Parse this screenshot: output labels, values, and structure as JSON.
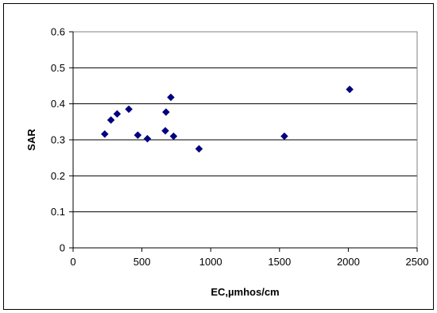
{
  "chart_data": {
    "type": "scatter",
    "title": "",
    "xlabel": "EC,µmhos/cm",
    "ylabel": "SAR",
    "xlim": [
      0,
      2500
    ],
    "ylim": [
      0,
      0.6
    ],
    "x_ticks": [
      0,
      500,
      1000,
      1500,
      2000,
      2500
    ],
    "y_ticks": [
      0,
      0.1,
      0.2,
      0.3,
      0.4,
      0.5,
      0.6
    ],
    "x_tick_labels": [
      "0",
      "500",
      "1000",
      "1500",
      "2000",
      "2500"
    ],
    "y_tick_labels": [
      "0",
      "0.1",
      "0.2",
      "0.3",
      "0.4",
      "0.5",
      "0.6"
    ],
    "grid": {
      "horizontal": true,
      "vertical": false
    },
    "marker": "diamond",
    "marker_color": "#000080",
    "legend": "none",
    "points": [
      {
        "x": 230,
        "y": 0.316
      },
      {
        "x": 275,
        "y": 0.355
      },
      {
        "x": 320,
        "y": 0.372
      },
      {
        "x": 405,
        "y": 0.385
      },
      {
        "x": 470,
        "y": 0.313
      },
      {
        "x": 540,
        "y": 0.303
      },
      {
        "x": 670,
        "y": 0.325
      },
      {
        "x": 675,
        "y": 0.377
      },
      {
        "x": 710,
        "y": 0.418
      },
      {
        "x": 730,
        "y": 0.31
      },
      {
        "x": 915,
        "y": 0.275
      },
      {
        "x": 1535,
        "y": 0.31
      },
      {
        "x": 2010,
        "y": 0.44
      }
    ]
  }
}
